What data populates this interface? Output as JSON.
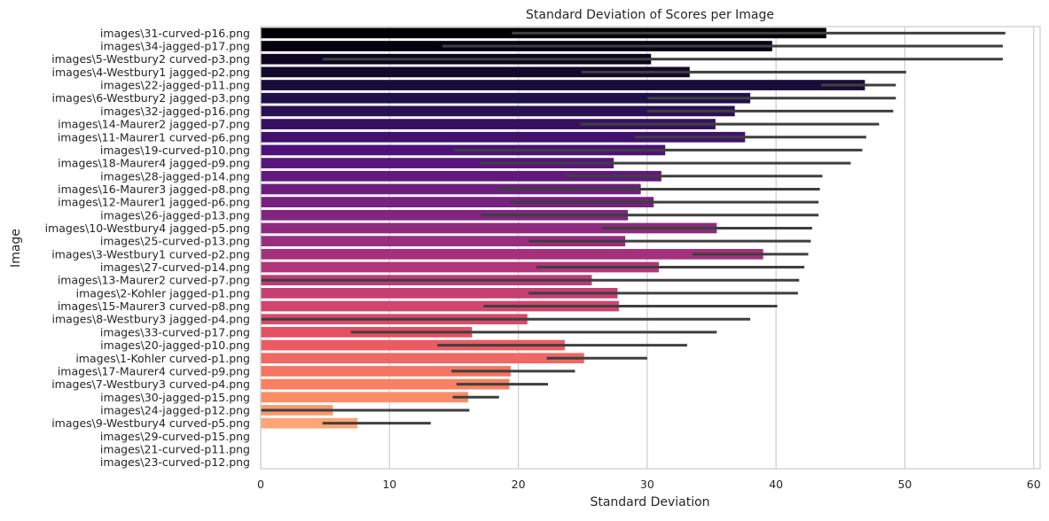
{
  "chart_data": {
    "type": "bar",
    "orientation": "horizontal",
    "title": "Standard Deviation of Scores per Image",
    "xlabel": "Standard Deviation",
    "ylabel": "Image",
    "xlim": [
      0,
      60.5
    ],
    "xticks": [
      0,
      10,
      20,
      30,
      40,
      50,
      60
    ],
    "grid": "vertical",
    "legend": "none",
    "palette": "magma",
    "categories": [
      "images\\31-curved-p16.png",
      "images\\34-jagged-p17.png",
      "images\\5-Westbury2 curved-p3.png",
      "images\\4-Westbury1 jagged-p2.png",
      "images\\22-jagged-p11.png",
      "images\\6-Westbury2 jagged-p3.png",
      "images\\32-jagged-p16.png",
      "images\\14-Maurer2 jagged-p7.png",
      "images\\11-Maurer1 curved-p6.png",
      "images\\19-curved-p10.png",
      "images\\18-Maurer4 jagged-p9.png",
      "images\\28-jagged-p14.png",
      "images\\16-Maurer3 jagged-p8.png",
      "images\\12-Maurer1 jagged-p6.png",
      "images\\26-jagged-p13.png",
      "images\\10-Westbury4 jagged-p5.png",
      "images\\25-curved-p13.png",
      "images\\3-Westbury1 curved-p2.png",
      "images\\27-curved-p14.png",
      "images\\13-Maurer2 curved-p7.png",
      "images\\2-Kohler jagged-p1.png",
      "images\\15-Maurer3 curved-p8.png",
      "images\\8-Westbury3 jagged-p4.png",
      "images\\33-curved-p17.png",
      "images\\20-jagged-p10.png",
      "images\\1-Kohler curved-p1.png",
      "images\\17-Maurer4 curved-p9.png",
      "images\\7-Westbury3 curved-p4.png",
      "images\\30-jagged-p15.png",
      "images\\24-jagged-p12.png",
      "images\\9-Westbury4 curved-p5.png",
      "images\\29-curved-p15.png",
      "images\\21-curved-p11.png",
      "images\\23-curved-p12.png"
    ],
    "values": [
      43.9,
      39.7,
      30.3,
      33.3,
      46.9,
      38.0,
      36.8,
      35.3,
      37.6,
      31.4,
      27.4,
      31.1,
      29.5,
      30.5,
      28.5,
      35.4,
      28.3,
      39.0,
      30.9,
      25.7,
      27.7,
      27.8,
      20.7,
      16.4,
      23.6,
      25.1,
      19.4,
      19.3,
      16.1,
      5.6,
      7.5,
      0,
      0,
      0
    ],
    "error_low": [
      19.5,
      14.1,
      4.8,
      24.9,
      43.5,
      30.0,
      30.0,
      24.8,
      29.0,
      15.0,
      17.0,
      23.6,
      18.3,
      19.3,
      17.1,
      26.5,
      20.8,
      33.5,
      21.4,
      0.0,
      20.8,
      17.3,
      0.0,
      7.0,
      13.7,
      22.2,
      14.8,
      15.2,
      14.9,
      0.0,
      4.8,
      null,
      null,
      null
    ],
    "error_high": [
      57.8,
      57.6,
      57.6,
      50.1,
      49.3,
      49.3,
      49.1,
      48.0,
      47.0,
      46.7,
      45.8,
      43.6,
      43.4,
      43.3,
      43.3,
      42.8,
      42.7,
      42.5,
      42.2,
      41.8,
      41.7,
      40.1,
      38.0,
      35.4,
      33.1,
      30.0,
      24.4,
      22.3,
      18.5,
      16.2,
      13.2,
      null,
      null,
      null
    ]
  }
}
